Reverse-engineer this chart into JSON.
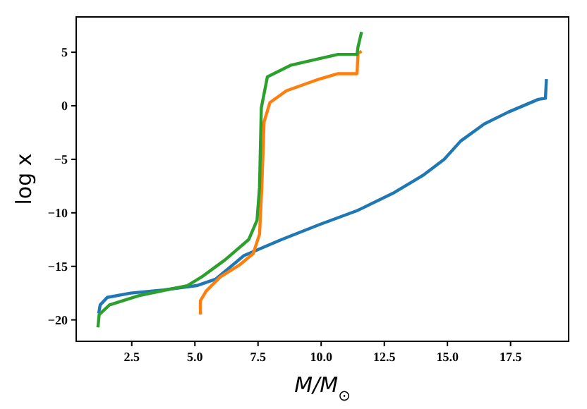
{
  "chart_data": {
    "type": "line",
    "xlabel": "M/M$_{⊙}$",
    "ylabel": "log x",
    "xlim": [
      0.3,
      19.8
    ],
    "ylim": [
      -22,
      8.3
    ],
    "xticks": [
      {
        "value": 2.5,
        "label": "2.5"
      },
      {
        "value": 5,
        "label": "5.0"
      },
      {
        "value": 7.5,
        "label": "7.5"
      },
      {
        "value": 10,
        "label": "10.0"
      },
      {
        "value": 12.5,
        "label": "12.5"
      },
      {
        "value": 15,
        "label": "15.0"
      },
      {
        "value": 17.5,
        "label": "17.5"
      }
    ],
    "yticks": [
      -20,
      -15,
      -10,
      -5,
      0,
      5
    ],
    "marker": "none",
    "line_style": "solid",
    "series": [
      {
        "color": "#1f77b4",
        "x": [
          1.19,
          1.25,
          1.53,
          2.46,
          3.77,
          5.07,
          5.82,
          6.94,
          8.43,
          9.93,
          11.42,
          12.9,
          14.03,
          14.87,
          15.52,
          16.46,
          17.4,
          18.6,
          18.88,
          18.92
        ],
        "values": [
          -19.4,
          -18.6,
          -17.9,
          -17.5,
          -17.2,
          -16.8,
          -16.2,
          -14.0,
          -12.5,
          -11.1,
          -9.8,
          -8.1,
          -6.5,
          -5.0,
          -3.3,
          -1.7,
          -0.6,
          0.6,
          0.7,
          2.5
        ]
      },
      {
        "color": "#ff7f0e",
        "x": [
          5.22,
          5.22,
          5.45,
          6.0,
          6.75,
          7.31,
          7.56,
          7.65,
          7.74,
          7.97,
          8.62,
          9.93,
          10.67,
          11.42,
          11.46,
          11.6
        ],
        "values": [
          -19.5,
          -18.2,
          -17.3,
          -16.0,
          -14.9,
          -13.8,
          -12.0,
          -7.6,
          -1.5,
          0.3,
          1.4,
          2.5,
          3.0,
          3.0,
          4.9,
          5.1
        ]
      },
      {
        "color": "#2ca02c",
        "x": [
          1.16,
          1.21,
          1.62,
          2.84,
          4.7,
          5.26,
          6.19,
          7.13,
          7.46,
          7.56,
          7.63,
          7.87,
          8.81,
          9.93,
          10.67,
          11.42,
          11.46,
          11.6
        ],
        "values": [
          -20.7,
          -19.5,
          -18.6,
          -17.7,
          -16.8,
          -16.0,
          -14.4,
          -12.5,
          -10.7,
          -7.6,
          -0.2,
          2.7,
          3.8,
          4.4,
          4.8,
          4.8,
          5.5,
          6.9
        ]
      }
    ]
  }
}
